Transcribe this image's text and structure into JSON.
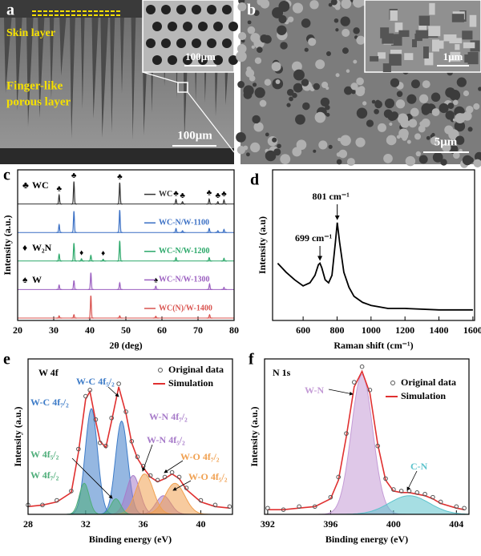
{
  "images": [
    {
      "panel": "a",
      "skin_label": "Skin layer",
      "porous_label": [
        "Finger-like",
        "porous layer"
      ],
      "scale_bar": "100μm",
      "inset_scale_bar": "100μm"
    },
    {
      "panel": "b",
      "scale_bar": "5μm",
      "inset_scale_bar": "1μm"
    }
  ],
  "chart_data": [
    {
      "type": "xrd",
      "panel": "c",
      "xlabel": "2θ (deg)",
      "ylabel": "Intensity (a.u.)",
      "xlim": [
        20,
        80
      ],
      "xticks": [
        20,
        30,
        40,
        50,
        60,
        70,
        80
      ],
      "ylim": [
        0,
        100
      ],
      "phases": [
        {
          "symbol": "♣",
          "name": "WC"
        },
        {
          "symbol": "♦",
          "name": "W₂N"
        },
        {
          "symbol": "♠",
          "name": "W"
        }
      ],
      "series": [
        {
          "name": "WC",
          "color": "#333333",
          "x": [
            31.5,
            35.6,
            48.3,
            63.9,
            65.7,
            73.1,
            75.5,
            77.2
          ],
          "values": [
            40,
            100,
            95,
            20,
            10,
            22,
            10,
            18
          ],
          "markers": {
            "symbol": "♣",
            "x": [
              31.5,
              35.6,
              48.3,
              63.9,
              65.7,
              73.1,
              75.5,
              77.2
            ]
          }
        },
        {
          "name": "WC-N/W-1100",
          "color": "#3a6fc4",
          "x": [
            31.5,
            35.6,
            48.3,
            63.9,
            65.7,
            73.1,
            75.5,
            77.2
          ],
          "values": [
            35,
            95,
            100,
            18,
            8,
            18,
            8,
            14
          ]
        },
        {
          "name": "WC-N/W-1200",
          "color": "#2ca86a",
          "x": [
            31.5,
            35.6,
            37.7,
            40.3,
            43.7,
            48.3,
            63.9,
            73.1,
            77.2
          ],
          "values": [
            30,
            80,
            10,
            25,
            8,
            90,
            15,
            15,
            12
          ],
          "markers": {
            "symbol": "♦",
            "x": [
              37.7,
              43.7
            ]
          }
        },
        {
          "name": "WC-N/W-1300",
          "color": "#9b5fc0",
          "x": [
            31.5,
            35.6,
            40.3,
            48.3,
            58.3,
            73.2,
            77.2
          ],
          "values": [
            20,
            40,
            75,
            30,
            15,
            25,
            10
          ],
          "markers": {
            "symbol": "♠",
            "x": [
              58.3
            ]
          }
        },
        {
          "name": "WC(N)/W-1400",
          "color": "#d9534f",
          "x": [
            31.5,
            35.6,
            40.3,
            48.3,
            58.3,
            73.2
          ],
          "values": [
            10,
            15,
            100,
            10,
            8,
            15
          ]
        }
      ]
    },
    {
      "type": "line",
      "panel": "d",
      "xlabel": "Raman shift (cm⁻¹)",
      "ylabel": "Intensity (a.u)",
      "xlim": [
        420,
        1610
      ],
      "xticks": [
        600,
        800,
        1000,
        1200,
        1400,
        1600
      ],
      "ylim": [
        0,
        100
      ],
      "color": "#000000",
      "x": [
        450,
        500,
        550,
        600,
        640,
        670,
        690,
        699,
        710,
        730,
        750,
        770,
        790,
        801,
        815,
        840,
        870,
        900,
        950,
        1000,
        1100,
        1200,
        1400,
        1600
      ],
      "values": [
        38,
        32,
        27,
        23,
        25,
        30,
        37,
        38,
        35,
        27,
        25,
        30,
        52,
        65,
        52,
        32,
        22,
        16,
        12,
        10,
        8,
        8,
        7,
        7
      ],
      "annotations": [
        {
          "text": "699 cm⁻¹",
          "x": 699
        },
        {
          "text": "801 cm⁻¹",
          "x": 801
        }
      ]
    },
    {
      "type": "xps",
      "panel": "e",
      "title": "W 4f",
      "xlabel": "Binding energy (eV)",
      "ylabel": "Intensity (a.u.)",
      "xlim": [
        28,
        42.2
      ],
      "xticks": [
        28,
        32,
        36,
        40
      ],
      "ylim": [
        0,
        100
      ],
      "x": [
        28,
        29,
        30,
        31,
        31.5,
        32,
        32.3,
        32.7,
        33,
        33.4,
        33.8,
        34.3,
        34.8,
        35.2,
        35.6,
        36,
        36.5,
        37,
        37.5,
        38,
        38.5,
        39,
        40,
        41,
        42
      ],
      "series": [
        {
          "name": "Original data",
          "color": "#555555",
          "values": [
            6,
            6,
            9,
            15,
            42,
            76,
            80,
            61,
            46,
            44,
            62,
            84,
            66,
            47,
            37,
            31,
            25,
            22,
            24,
            27,
            24,
            17,
            9,
            6,
            5
          ]
        },
        {
          "name": "Simulation",
          "color": "#e03030",
          "values": [
            5,
            6,
            8,
            14,
            40,
            74,
            79,
            60,
            47,
            43,
            60,
            82,
            65,
            46,
            36,
            30,
            24,
            21,
            23,
            26,
            23,
            16,
            8,
            5,
            4
          ]
        }
      ],
      "components": [
        {
          "name": "W-C 4f₇/₂",
          "color": "#3e7cc8",
          "center": 32.4,
          "height": 68,
          "fwhm": 1.0
        },
        {
          "name": "W-C 4f₅/₂",
          "color": "#3e7cc8",
          "center": 34.5,
          "height": 60,
          "fwhm": 1.0
        },
        {
          "name": "W-N 4f₇/₂",
          "color": "#a77bc9",
          "center": 35.3,
          "height": 25,
          "fwhm": 1.1
        },
        {
          "name": "W-N 4f₅/₂",
          "color": "#a77bc9",
          "center": 37.4,
          "height": 12,
          "fwhm": 1.2
        },
        {
          "name": "W-O 4f₇/₂",
          "color": "#f0a050",
          "center": 36.1,
          "height": 26,
          "fwhm": 1.4
        },
        {
          "name": "W-O 4f₅/₂",
          "color": "#f0a050",
          "center": 38.2,
          "height": 20,
          "fwhm": 1.6
        },
        {
          "name": "W 4f₅/₂",
          "color": "#4fae7a",
          "center": 34.1,
          "height": 10,
          "fwhm": 0.8
        },
        {
          "name": "W 4f₇/₂",
          "color": "#4fae7a",
          "center": 31.9,
          "height": 20,
          "fwhm": 0.8
        }
      ]
    },
    {
      "type": "xps",
      "panel": "f",
      "title": "N 1s",
      "xlabel": "Binding energy (eV)",
      "ylabel": "Intensity (a.u.)",
      "xlim": [
        391.8,
        404.8
      ],
      "xticks": [
        392,
        396,
        400,
        404
      ],
      "ylim": [
        0,
        100
      ],
      "x": [
        392,
        393,
        394,
        395,
        396,
        396.5,
        397,
        397.5,
        398,
        398.5,
        399,
        399.5,
        400,
        400.5,
        401,
        401.5,
        402,
        402.5,
        403,
        404,
        404.5
      ],
      "series": [
        {
          "name": "Original data",
          "color": "#555555",
          "values": [
            4,
            3,
            5,
            5,
            11,
            24,
            52,
            85,
            95,
            80,
            44,
            23,
            16,
            15,
            15,
            14,
            13,
            11,
            8,
            5,
            4
          ]
        },
        {
          "name": "Simulation",
          "color": "#e03030",
          "values": [
            3,
            3,
            4,
            5,
            10,
            22,
            50,
            82,
            92,
            78,
            45,
            22,
            15,
            14,
            14,
            13,
            12,
            10,
            7,
            4,
            3
          ]
        }
      ],
      "components": [
        {
          "name": "W-N",
          "color": "#c49bd6",
          "center": 398.0,
          "height": 90,
          "fwhm": 1.6
        },
        {
          "name": "C-N",
          "color": "#5cc3cc",
          "center": 401.0,
          "height": 12,
          "fwhm": 3.0
        }
      ]
    }
  ]
}
